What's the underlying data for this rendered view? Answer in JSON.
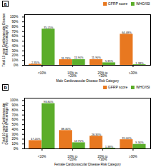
{
  "chart_data": [
    {
      "type": "bar",
      "title": "a",
      "categories": [
        "<10%",
        "10% to\n<20%",
        "20% to\n<30%",
        "≥30%"
      ],
      "series": [
        {
          "name": "GFRP score",
          "color": "#E87820",
          "values": [
            2.35,
            11.76,
            11.9,
            64.48
          ],
          "value_labels": [
            "2.35%",
            "11.76%",
            "11.90%",
            "64.48%"
          ]
        },
        {
          "name": "WHO/ISI",
          "color": "#5BAD2A",
          "values": [
            75.15,
            11.9,
            5.35,
            1.38
          ],
          "value_labels": [
            "75.15%",
            "11.90%",
            "5.35%",
            "1.38%"
          ]
        }
      ],
      "xlabel": "Male Cardiovascular Disease Risk Category",
      "ylabel": "Total 10-year Cardiovascular Disease\nRisk (Percentage %)",
      "ylim": [
        0,
        105
      ],
      "yticks": [
        {
          "value": 0,
          "label": "0%"
        },
        {
          "value": 10,
          "label": "10%"
        },
        {
          "value": 20,
          "label": "20%"
        },
        {
          "value": 30,
          "label": "30%"
        },
        {
          "value": 40,
          "label": "40%"
        },
        {
          "value": 50,
          "label": "50%"
        },
        {
          "value": 60,
          "label": "60%"
        },
        {
          "value": 70,
          "label": "70%"
        },
        {
          "value": 80,
          "label": "80%"
        },
        {
          "value": 90,
          "label": "90%"
        },
        {
          "value": 100,
          "label": "100%"
        }
      ],
      "grid": false,
      "legend": "upper right",
      "data_labels": true
    },
    {
      "type": "bar",
      "title": "b",
      "categories": [
        "<10%",
        "10% to\n<20%",
        "20% to\n<30%",
        "≥30%"
      ],
      "series": [
        {
          "name": "GFRP score",
          "color": "#E87820",
          "values": [
            17.2,
            38.0,
            26.33,
            19.0
          ],
          "value_labels": [
            "17.20%",
            "38.00%",
            "26.33%",
            "19.00%"
          ]
        },
        {
          "name": "WHO/ISI",
          "color": "#5BAD2A",
          "values": [
            93.8,
            12.7,
            1.38,
            9.3
          ],
          "value_labels": [
            "93.80%",
            "12.70%",
            "1.38%",
            "9.30%"
          ]
        }
      ],
      "xlabel": "Female Cardiovascular Disease Risk Category",
      "ylabel": "Total 10-year Cardiovascular\nDisease Risk (Percentage %)",
      "ylim": [
        0,
        105
      ],
      "yticks": [
        {
          "value": 0,
          "label": "0%"
        },
        {
          "value": 10,
          "label": "10%"
        },
        {
          "value": 20,
          "label": "20%"
        },
        {
          "value": 30,
          "label": "30%"
        },
        {
          "value": 40,
          "label": "40%"
        },
        {
          "value": 50,
          "label": "50%"
        },
        {
          "value": 60,
          "label": "60%"
        },
        {
          "value": 70,
          "label": "70%"
        },
        {
          "value": 80,
          "label": "80%"
        },
        {
          "value": 90,
          "label": "90%"
        },
        {
          "value": 100,
          "label": "100%"
        }
      ],
      "grid": false,
      "legend": "upper right",
      "data_labels": true
    }
  ]
}
